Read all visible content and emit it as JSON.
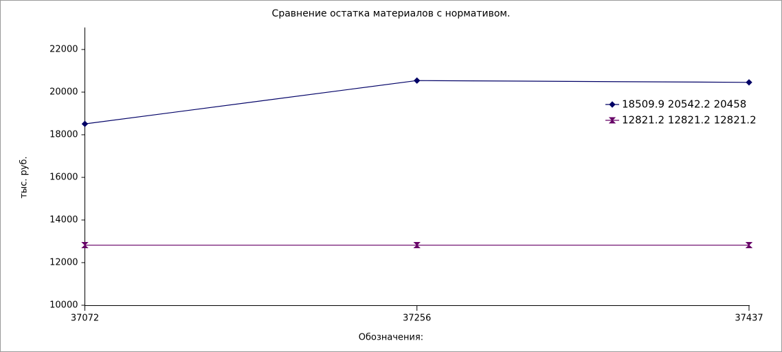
{
  "chart_data": {
    "type": "line",
    "title": "Сравнение остатка материалов с нормативом.",
    "x_label": "Обозначения:",
    "y_label": "тыс. руб.",
    "categories": [
      "37072",
      "37256",
      "37437"
    ],
    "series": [
      {
        "name": "18509.9 20542.2 20458",
        "color": "#000066",
        "marker": "diamond",
        "values": [
          18509.9,
          20542.2,
          20458
        ]
      },
      {
        "name": "12821.2 12821.2 12821.2",
        "color": "#660066",
        "marker": "hourglass",
        "values": [
          12821.2,
          12821.2,
          12821.2
        ]
      }
    ],
    "ylim": [
      10000,
      23000
    ],
    "yticks": [
      10000,
      12000,
      14000,
      16000,
      18000,
      20000,
      22000
    ],
    "grid": false,
    "legend": "right"
  }
}
